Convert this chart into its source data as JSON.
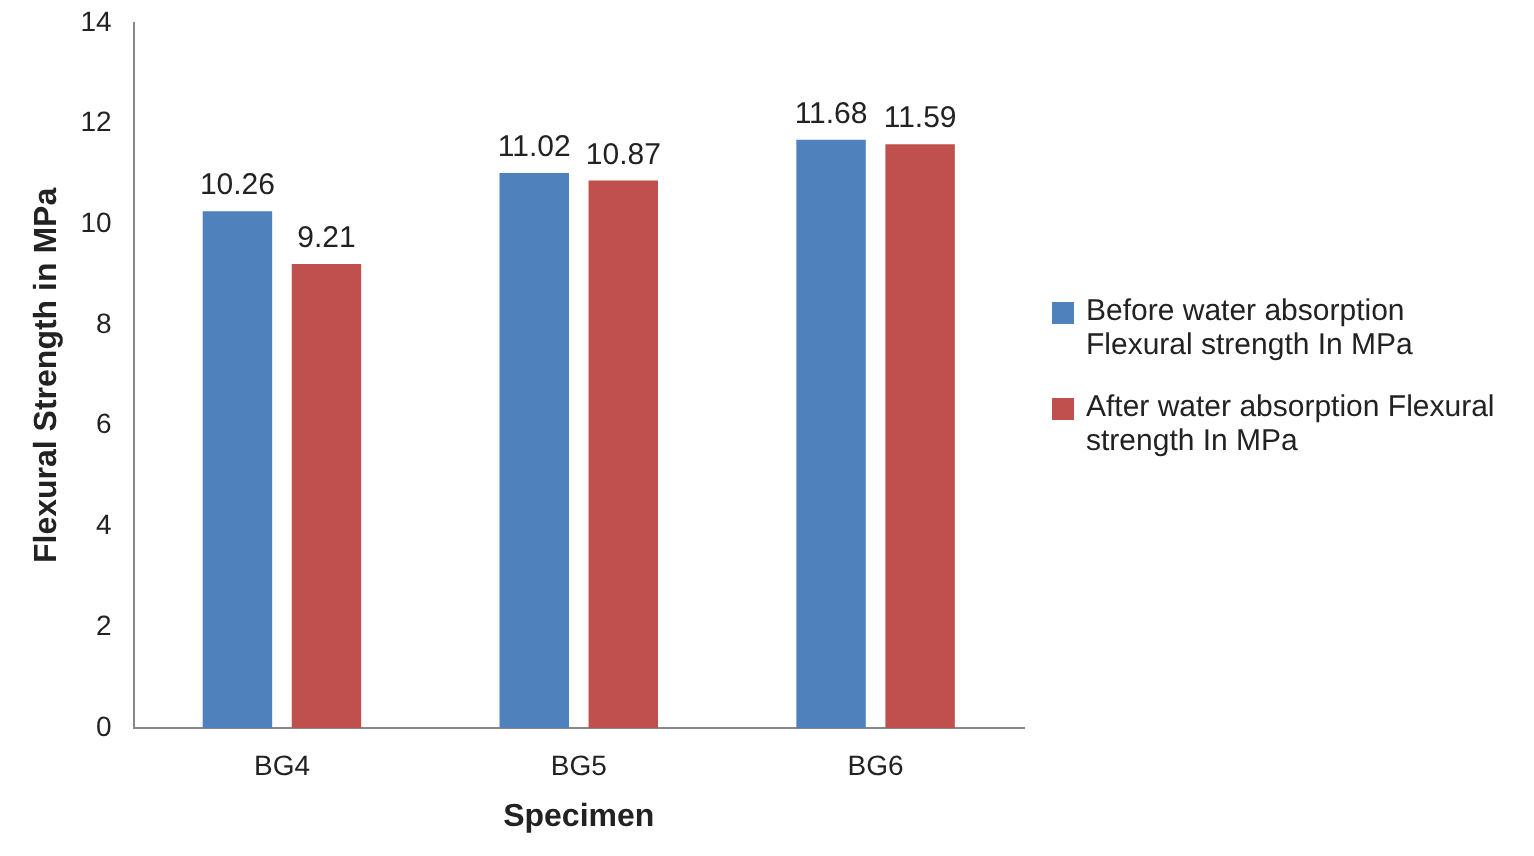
{
  "chart_data": {
    "type": "bar",
    "xlabel": "Specimen",
    "ylabel": "Flexural Strength in MPa",
    "categories": [
      "BG4",
      "BG5",
      "BG6"
    ],
    "series": [
      {
        "name": "Before water absorption Flexural strength In MPa",
        "color": "#4f81bd",
        "values": [
          10.26,
          11.02,
          11.68
        ]
      },
      {
        "name": "After water absorption Flexural strength In MPa",
        "color": "#c0504d",
        "values": [
          9.21,
          10.87,
          11.59
        ]
      }
    ],
    "ylim": [
      0,
      14
    ],
    "yticks": [
      0,
      2,
      4,
      6,
      8,
      10,
      12,
      14
    ],
    "grid": false,
    "legend": "right",
    "data_labels": true
  }
}
